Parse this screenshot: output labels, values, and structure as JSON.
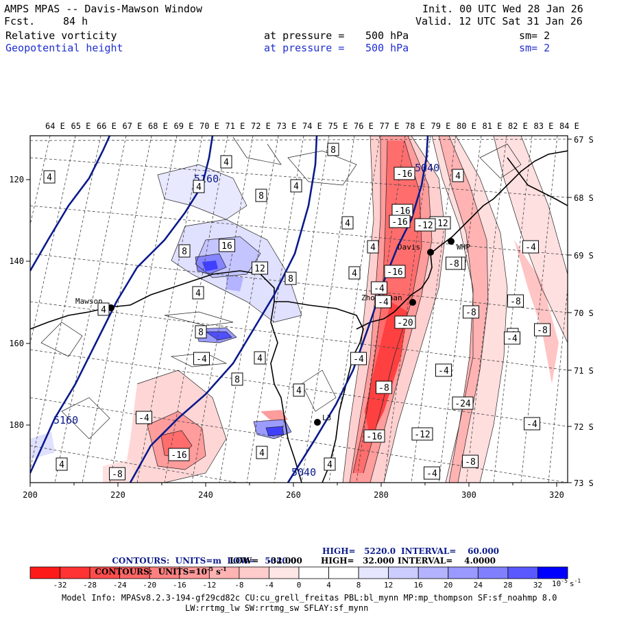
{
  "header": {
    "title": "AMPS MPAS -- Davis-Mawson Window",
    "forecast_label": "Fcst.",
    "forecast_value": "84 h",
    "init": "Init. 00 UTC Wed 28 Jan 26",
    "valid": "Valid. 12 UTC Sat 31 Jan 26",
    "field1": "Relative vorticity",
    "field2": "Geopotential height",
    "pressure1": "at pressure =",
    "pressure1_val": "500 hPa",
    "pressure2": "at pressure =",
    "pressure2_val": "500 hPa",
    "sm1": "sm= 2",
    "sm2": "sm= 2"
  },
  "axes": {
    "lon_labels": [
      "64 E",
      "65 E",
      "66 E",
      "67 E",
      "68 E",
      "69 E",
      "70 E",
      "71 E",
      "72 E",
      "73 E",
      "74 E",
      "75 E",
      "76 E",
      "77 E",
      "78 E",
      "79 E",
      "80 E",
      "81 E",
      "82 E",
      "83 E",
      "84 E"
    ],
    "lat_labels": [
      "67 S",
      "68 S",
      "69 S",
      "70 S",
      "71 S",
      "72 S",
      "73 S"
    ],
    "x_ticks": [
      "200",
      "220",
      "240",
      "260",
      "280",
      "300",
      "320"
    ],
    "y_ticks": [
      "120",
      "140",
      "160",
      "180"
    ]
  },
  "stations": {
    "mawson": "Mawson",
    "davis": "Davis",
    "zhongshan": "Zhongshan",
    "whp": "WHP",
    "dot_label": "L3"
  },
  "contour_labels": {
    "height": [
      "5160",
      "5040",
      "5160",
      "5040"
    ],
    "vorticity": [
      "4",
      "4",
      "4",
      "8",
      "8",
      "4",
      "16",
      "8",
      "12",
      "8",
      "4",
      "4",
      "8",
      "4",
      "4",
      "4",
      "8",
      "4",
      "4",
      "4",
      "4",
      "4",
      "4",
      "4",
      "-4",
      "-16",
      "-8",
      "-4",
      "-16",
      "-12",
      "-8",
      "-16",
      "-4",
      "-8",
      "-16",
      "-12",
      "-4",
      "-16",
      "-4",
      "-8",
      "-20",
      "-4",
      "-8",
      "-24",
      "-8",
      "-4",
      "-16",
      "-12",
      "-4",
      "-8",
      "-4",
      "-8",
      "-4"
    ]
  },
  "legend": {
    "line1_left": "CONTOURS:  UNITS=m  LOW=   5040.0",
    "line1_high": "HIGH=   5220.0",
    "line1_int": "INTERVAL=    60.000",
    "line2_left": "CONTOURS:  UNITS=10",
    "line2_exp": "-5",
    "line2_unit": "s",
    "line2_unitexp": "-1",
    "line2_low": "LOW=   -32.000",
    "line2_high": "HIGH=   32.000",
    "line2_int": "INTERVAL=    4.0000",
    "colorbar_labels": [
      "-32",
      "-28",
      "-24",
      "-20",
      "-16",
      "-12",
      "-8",
      "-4",
      "0",
      "4",
      "8",
      "12",
      "16",
      "20",
      "24",
      "28",
      "32"
    ],
    "colorbar_unit": "10",
    "colorbar_unit_exp": "-5",
    "colorbar_unit_s": "s",
    "colorbar_unit_sexp": "-1",
    "colors": [
      "#ff1a1a",
      "#ff3333",
      "#ff4d4d",
      "#ff6666",
      "#ff8080",
      "#ff9999",
      "#ffb3b3",
      "#ffcccc",
      "#ffe6e6",
      "#ffffff",
      "#ffffff",
      "#e6e6ff",
      "#ccccff",
      "#b3b3ff",
      "#9999ff",
      "#8080ff",
      "#5959ff",
      "#0000ff"
    ]
  },
  "footer": {
    "line1": "Model Info: MPASv8.2.3-194-gf29cd82c CU:cu_grell_freitas PBL:bl_mynn MP:mp_thompson SF:sf_noahmp 8.0",
    "line2": "LW:rrtmg_lw SW:rrtmg_sw SFLAY:sf_mynn"
  }
}
